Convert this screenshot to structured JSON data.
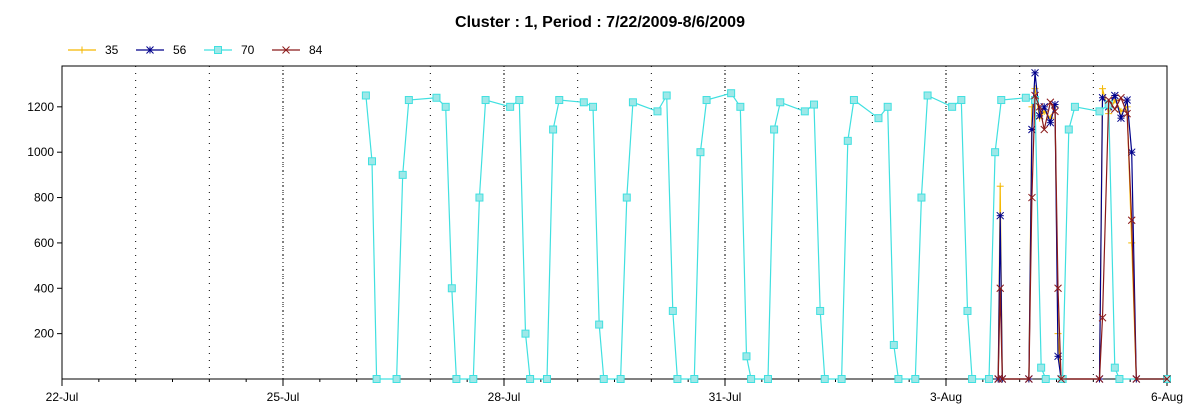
{
  "chart_data": {
    "type": "line",
    "title": "Cluster : 1, Period : 7/22/2009-8/6/2009",
    "xlabel": "",
    "ylabel": "",
    "x_unit": "date (2009)",
    "xlim": [
      "2009-07-22 00:00",
      "2009-08-06 00:00"
    ],
    "ylim": [
      0,
      1380
    ],
    "x_ticks": [
      {
        "x": "2009-07-22",
        "label": "22-Jul"
      },
      {
        "x": "2009-07-25",
        "label": "25-Jul"
      },
      {
        "x": "2009-07-28",
        "label": "28-Jul"
      },
      {
        "x": "2009-07-31",
        "label": "31-Jul"
      },
      {
        "x": "2009-08-03",
        "label": "3-Aug"
      },
      {
        "x": "2009-08-06",
        "label": "6-Aug"
      }
    ],
    "y_ticks": [
      200,
      400,
      600,
      800,
      1000,
      1200
    ],
    "grid": true,
    "legend_position": "top-left",
    "series": [
      {
        "name": "35",
        "color": "#f5b800",
        "marker": "plus",
        "points": [
          [
            "2009-08-03 17:00",
            0
          ],
          [
            "2009-08-03 17:40",
            850
          ],
          [
            "2009-08-03 18:20",
            0
          ],
          [
            "2009-08-04 03:00",
            0
          ],
          [
            "2009-08-04 04:00",
            1200
          ],
          [
            "2009-08-04 05:00",
            1280
          ],
          [
            "2009-08-04 06:30",
            1150
          ],
          [
            "2009-08-04 08:00",
            1180
          ],
          [
            "2009-08-04 10:00",
            1150
          ],
          [
            "2009-08-04 11:30",
            1200
          ],
          [
            "2009-08-04 12:30",
            200
          ],
          [
            "2009-08-04 13:30",
            0
          ],
          [
            "2009-08-05 02:00",
            0
          ],
          [
            "2009-08-05 03:00",
            1280
          ],
          [
            "2009-08-05 05:00",
            1170
          ],
          [
            "2009-08-05 07:00",
            1230
          ],
          [
            "2009-08-05 09:00",
            1180
          ],
          [
            "2009-08-05 11:00",
            1200
          ],
          [
            "2009-08-05 12:30",
            600
          ],
          [
            "2009-08-05 14:00",
            0
          ],
          [
            "2009-08-06 00:00",
            0
          ]
        ]
      },
      {
        "name": "56",
        "color": "#00008b",
        "marker": "star",
        "points": [
          [
            "2009-08-03 17:00",
            0
          ],
          [
            "2009-08-03 17:40",
            720
          ],
          [
            "2009-08-03 18:20",
            0
          ],
          [
            "2009-08-04 03:00",
            0
          ],
          [
            "2009-08-04 04:00",
            1100
          ],
          [
            "2009-08-04 05:00",
            1350
          ],
          [
            "2009-08-04 06:30",
            1160
          ],
          [
            "2009-08-04 08:00",
            1200
          ],
          [
            "2009-08-04 10:00",
            1130
          ],
          [
            "2009-08-04 11:30",
            1210
          ],
          [
            "2009-08-04 12:30",
            100
          ],
          [
            "2009-08-04 13:30",
            0
          ],
          [
            "2009-08-05 02:00",
            0
          ],
          [
            "2009-08-05 03:00",
            1240
          ],
          [
            "2009-08-05 05:00",
            1200
          ],
          [
            "2009-08-05 07:00",
            1250
          ],
          [
            "2009-08-05 09:00",
            1150
          ],
          [
            "2009-08-05 11:00",
            1230
          ],
          [
            "2009-08-05 12:30",
            1000
          ],
          [
            "2009-08-05 14:00",
            0
          ],
          [
            "2009-08-06 00:00",
            0
          ]
        ]
      },
      {
        "name": "70",
        "color": "#40e0e0",
        "marker": "square",
        "points": [
          [
            "2009-07-26 03:00",
            1250
          ],
          [
            "2009-07-26 05:00",
            960
          ],
          [
            "2009-07-26 06:30",
            0
          ],
          [
            "2009-07-26 13:00",
            0
          ],
          [
            "2009-07-26 15:00",
            900
          ],
          [
            "2009-07-26 17:00",
            1230
          ],
          [
            "2009-07-27 02:00",
            1240
          ],
          [
            "2009-07-27 05:00",
            1200
          ],
          [
            "2009-07-27 07:00",
            400
          ],
          [
            "2009-07-27 08:30",
            0
          ],
          [
            "2009-07-27 14:00",
            0
          ],
          [
            "2009-07-27 16:00",
            800
          ],
          [
            "2009-07-27 18:00",
            1230
          ],
          [
            "2009-07-28 02:00",
            1200
          ],
          [
            "2009-07-28 05:00",
            1230
          ],
          [
            "2009-07-28 07:00",
            200
          ],
          [
            "2009-07-28 08:30",
            0
          ],
          [
            "2009-07-28 14:00",
            0
          ],
          [
            "2009-07-28 16:00",
            1100
          ],
          [
            "2009-07-28 18:00",
            1230
          ],
          [
            "2009-07-29 02:00",
            1220
          ],
          [
            "2009-07-29 05:00",
            1200
          ],
          [
            "2009-07-29 07:00",
            240
          ],
          [
            "2009-07-29 08:30",
            0
          ],
          [
            "2009-07-29 14:00",
            0
          ],
          [
            "2009-07-29 16:00",
            800
          ],
          [
            "2009-07-29 18:00",
            1220
          ],
          [
            "2009-07-30 02:00",
            1180
          ],
          [
            "2009-07-30 05:00",
            1250
          ],
          [
            "2009-07-30 07:00",
            300
          ],
          [
            "2009-07-30 08:30",
            0
          ],
          [
            "2009-07-30 14:00",
            0
          ],
          [
            "2009-07-30 16:00",
            1000
          ],
          [
            "2009-07-30 18:00",
            1230
          ],
          [
            "2009-07-31 02:00",
            1260
          ],
          [
            "2009-07-31 05:00",
            1200
          ],
          [
            "2009-07-31 07:00",
            100
          ],
          [
            "2009-07-31 08:30",
            0
          ],
          [
            "2009-07-31 14:00",
            0
          ],
          [
            "2009-07-31 16:00",
            1100
          ],
          [
            "2009-07-31 18:00",
            1220
          ],
          [
            "2009-08-01 02:00",
            1180
          ],
          [
            "2009-08-01 05:00",
            1210
          ],
          [
            "2009-08-01 07:00",
            300
          ],
          [
            "2009-08-01 08:30",
            0
          ],
          [
            "2009-08-01 14:00",
            0
          ],
          [
            "2009-08-01 16:00",
            1050
          ],
          [
            "2009-08-01 18:00",
            1230
          ],
          [
            "2009-08-02 02:00",
            1150
          ],
          [
            "2009-08-02 05:00",
            1200
          ],
          [
            "2009-08-02 07:00",
            150
          ],
          [
            "2009-08-02 08:30",
            0
          ],
          [
            "2009-08-02 14:00",
            0
          ],
          [
            "2009-08-02 16:00",
            800
          ],
          [
            "2009-08-02 18:00",
            1250
          ],
          [
            "2009-08-03 02:00",
            1200
          ],
          [
            "2009-08-03 05:00",
            1230
          ],
          [
            "2009-08-03 07:00",
            300
          ],
          [
            "2009-08-03 08:30",
            0
          ],
          [
            "2009-08-03 14:00",
            0
          ],
          [
            "2009-08-03 16:00",
            1000
          ],
          [
            "2009-08-03 18:00",
            1230
          ],
          [
            "2009-08-04 02:00",
            1240
          ],
          [
            "2009-08-04 05:00",
            1230
          ],
          [
            "2009-08-04 07:00",
            50
          ],
          [
            "2009-08-04 08:30",
            0
          ],
          [
            "2009-08-04 14:00",
            0
          ],
          [
            "2009-08-04 16:00",
            1100
          ],
          [
            "2009-08-04 18:00",
            1200
          ],
          [
            "2009-08-05 02:00",
            1180
          ],
          [
            "2009-08-05 05:00",
            1210
          ],
          [
            "2009-08-05 07:00",
            50
          ],
          [
            "2009-08-05 08:30",
            0
          ],
          [
            "2009-08-06 00:00",
            0
          ]
        ]
      },
      {
        "name": "84",
        "color": "#8b1a1a",
        "marker": "cross",
        "points": [
          [
            "2009-08-03 17:00",
            0
          ],
          [
            "2009-08-03 17:40",
            400
          ],
          [
            "2009-08-03 18:20",
            0
          ],
          [
            "2009-08-04 03:00",
            0
          ],
          [
            "2009-08-04 04:00",
            800
          ],
          [
            "2009-08-04 05:00",
            1250
          ],
          [
            "2009-08-04 06:30",
            1200
          ],
          [
            "2009-08-04 08:00",
            1100
          ],
          [
            "2009-08-04 10:00",
            1220
          ],
          [
            "2009-08-04 11:30",
            1180
          ],
          [
            "2009-08-04 12:30",
            400
          ],
          [
            "2009-08-04 13:30",
            0
          ],
          [
            "2009-08-05 02:00",
            0
          ],
          [
            "2009-08-05 03:00",
            270
          ],
          [
            "2009-08-05 05:00",
            1230
          ],
          [
            "2009-08-05 07:00",
            1190
          ],
          [
            "2009-08-05 09:00",
            1240
          ],
          [
            "2009-08-05 11:00",
            1170
          ],
          [
            "2009-08-05 12:30",
            700
          ],
          [
            "2009-08-05 14:00",
            0
          ],
          [
            "2009-08-06 00:00",
            0
          ]
        ]
      }
    ]
  }
}
